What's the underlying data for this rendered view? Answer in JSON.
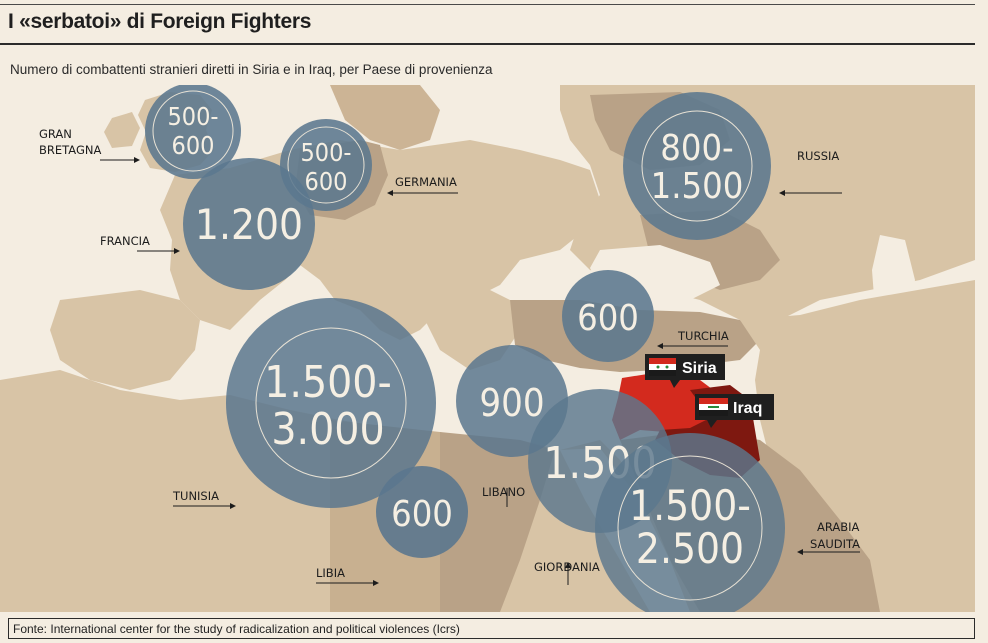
{
  "title": "I «serbatoi» di Foreign Fighters",
  "subtitle": "Numero di combattenti stranieri diretti in Siria e in Iraq, per Paese di provenienza",
  "source": "Fonte: International center for the study of radicalization and political violences (Icrs)",
  "colors": {
    "bubble": "#5b778e",
    "sea": "#f4ede1",
    "land": "#d9c6a9",
    "land_dark": "#b9a287",
    "syria": "#d32a1e",
    "iraq": "#7e1810"
  },
  "countries": {
    "gran_bretagna": {
      "label_line1": "GRAN",
      "label_line2": "BRETAGNA",
      "value": "500-600",
      "val_line1": "500-",
      "val_line2": "600"
    },
    "germania": {
      "label": "GERMANIA",
      "value": "500-600",
      "val_line1": "500-",
      "val_line2": "600"
    },
    "francia": {
      "label": "FRANCIA",
      "value": "1.200"
    },
    "russia": {
      "label": "RUSSIA",
      "value": "800-1.500",
      "val_line1": "800-",
      "val_line2": "1.500"
    },
    "turchia": {
      "label": "TURCHIA",
      "value": "600"
    },
    "tunisia": {
      "label": "TUNISIA",
      "value": "1.500-3.000",
      "val_line1": "1.500-",
      "val_line2": "3.000"
    },
    "libia": {
      "label": "LIBIA",
      "value": "600"
    },
    "libano": {
      "label": "LIBANO",
      "value": "900"
    },
    "giordania": {
      "label": "GIORDANIA",
      "value": "1.500"
    },
    "arabia_saudita": {
      "label_line1": "ARABIA",
      "label_line2": "SAUDITA",
      "value": "1.500-2.500",
      "val_line1": "1.500-",
      "val_line2": "2.500"
    }
  },
  "destinations": {
    "siria": "Siria",
    "iraq": "Iraq"
  }
}
